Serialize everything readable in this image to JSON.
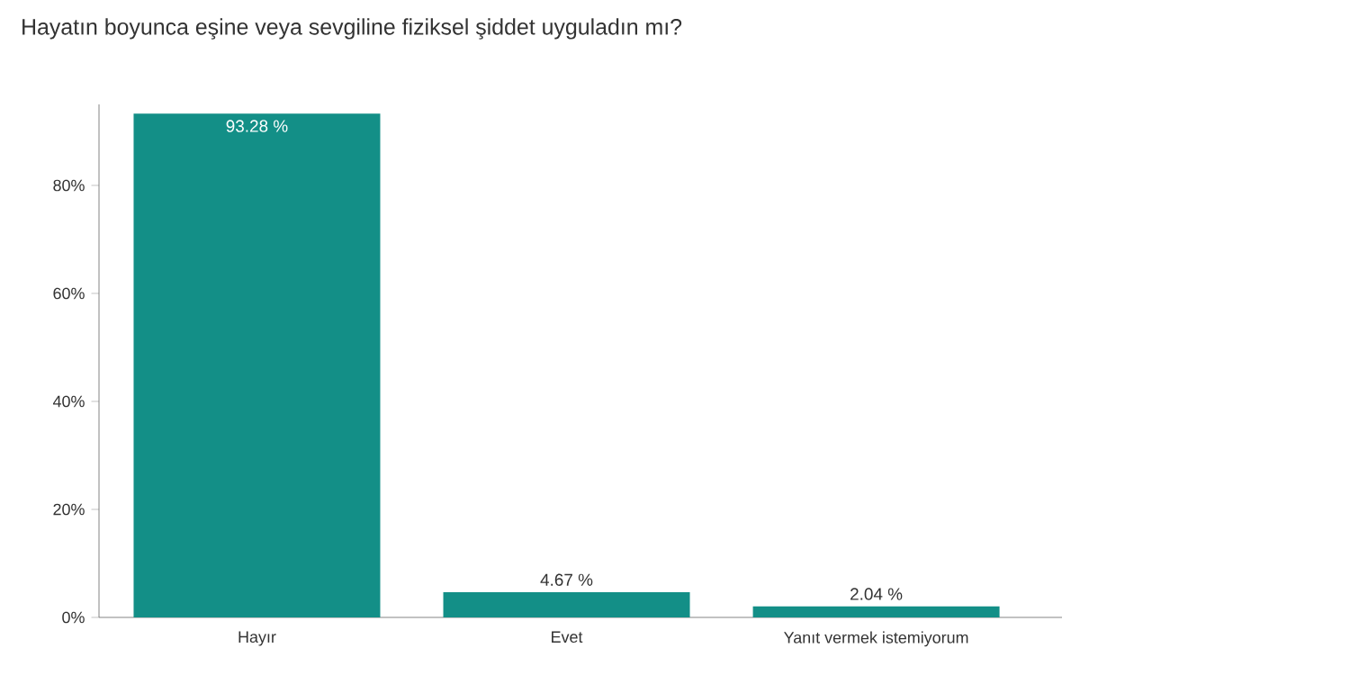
{
  "chart_data": {
    "type": "bar",
    "title": "Hayatın boyunca eşine veya sevgiline fiziksel şiddet uyguladın mı?",
    "categories": [
      "Hayır",
      "Evet",
      "Yanıt vermek istemiyorum"
    ],
    "values": [
      93.28,
      4.67,
      2.04
    ],
    "value_labels": [
      "93.28 %",
      "4.67 %",
      "2.04 %"
    ],
    "color": "#138f87",
    "ylim": [
      0,
      95
    ],
    "yticks": [
      {
        "value": 0,
        "label": "0%"
      },
      {
        "value": 20,
        "label": "20%"
      },
      {
        "value": 40,
        "label": "40%"
      },
      {
        "value": 60,
        "label": "60%"
      },
      {
        "value": 80,
        "label": "80%"
      }
    ],
    "grid": false
  }
}
